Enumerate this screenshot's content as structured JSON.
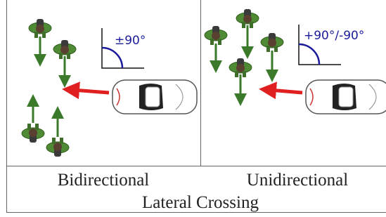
{
  "panels": [
    {
      "label": "Bidirectional",
      "angle": "±90°"
    },
    {
      "label": "Unidirectional",
      "angle": "+90°/-90°"
    }
  ],
  "caption": "Lateral Crossing"
}
